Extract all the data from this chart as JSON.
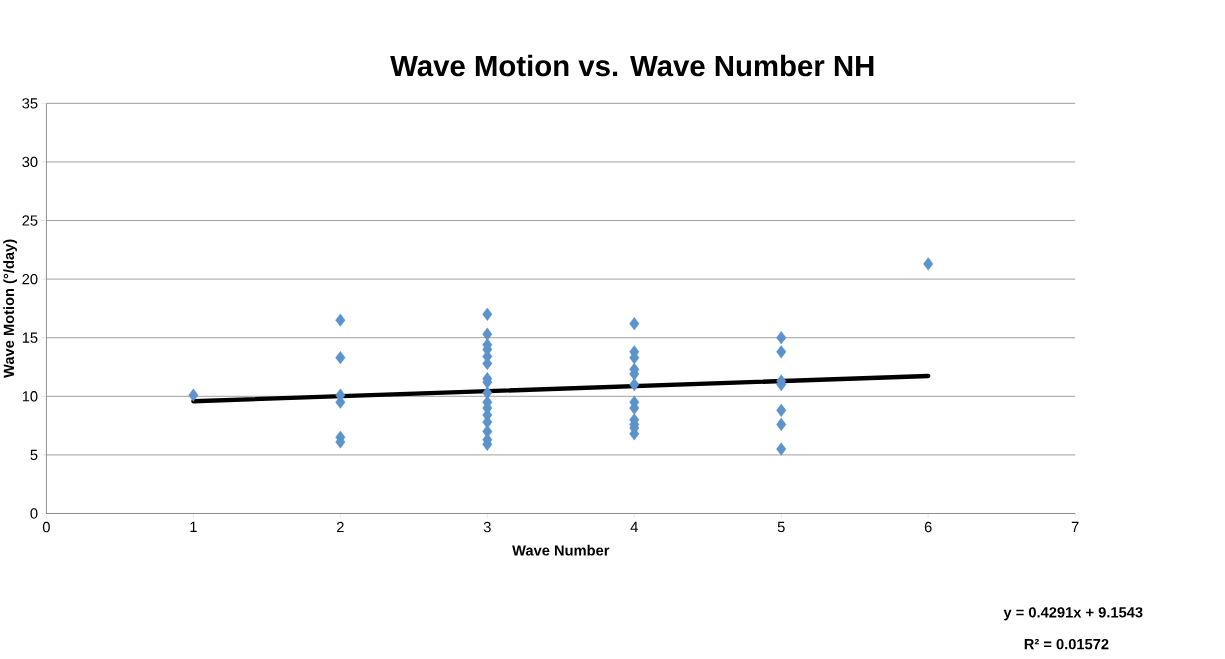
{
  "chart_data": {
    "type": "scatter",
    "title": "Wave Motion vs. Wave Number NH",
    "xlabel": "Wave Number",
    "ylabel": "Wave Motion (°/day)",
    "xlim": [
      0,
      7
    ],
    "xticks": [
      0,
      1,
      2,
      3,
      4,
      5,
      6,
      7
    ],
    "ylim": [
      0,
      35
    ],
    "yticks": [
      0,
      5,
      10,
      15,
      20,
      25,
      30,
      35
    ],
    "grid": "y",
    "marker": "diamond",
    "series": [
      {
        "color": "#5b93cc",
        "x": [
          1,
          2,
          2,
          2,
          2,
          2,
          2,
          3,
          3,
          3,
          3,
          3,
          3,
          3,
          3,
          3,
          3,
          3,
          3,
          3,
          3,
          3,
          3,
          4,
          4,
          4,
          4,
          4,
          4,
          4,
          4,
          4,
          4,
          4,
          4,
          5,
          5,
          5,
          5,
          5,
          5,
          5,
          6
        ],
        "values": [
          10.1,
          16.5,
          13.3,
          10.1,
          9.5,
          6.5,
          6.1,
          17.0,
          15.3,
          14.4,
          14.0,
          13.4,
          12.8,
          11.5,
          11.2,
          10.3,
          9.5,
          9.0,
          8.4,
          7.8,
          7.0,
          6.3,
          5.9,
          16.2,
          13.8,
          13.3,
          12.3,
          11.9,
          11.0,
          9.5,
          9.0,
          8.0,
          7.6,
          7.3,
          6.8,
          15.0,
          13.8,
          11.3,
          11.0,
          8.8,
          7.6,
          5.5,
          21.3
        ]
      },
      {
        "type": "line",
        "color": "#000000",
        "x": [
          1,
          6
        ],
        "values": [
          9.58,
          11.73
        ],
        "marker": "none"
      }
    ],
    "annotations": [
      "y = 0.4291x + 9.1543",
      "R² = 0.01572"
    ]
  }
}
